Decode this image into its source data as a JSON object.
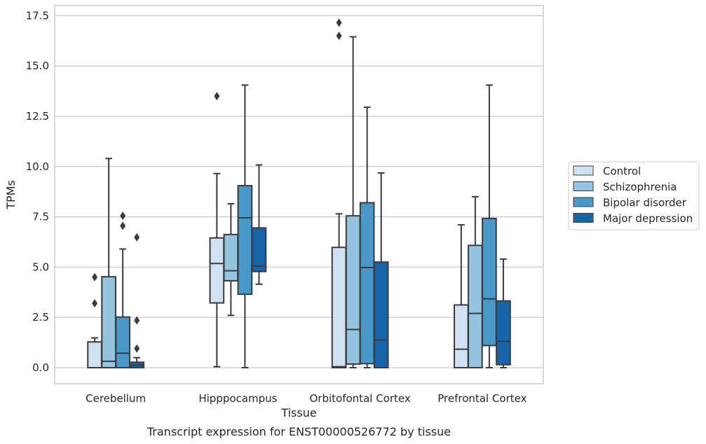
{
  "chart_data": {
    "type": "box",
    "title": "",
    "caption": "Transcript expression for ENST00000526772 by tissue",
    "xlabel": "Tissue",
    "ylabel": "TPMs",
    "ylim": [
      -0.8,
      18.0
    ],
    "yticks": [
      "0.0",
      "2.5",
      "5.0",
      "7.5",
      "10.0",
      "12.5",
      "15.0",
      "17.5"
    ],
    "ytick_values": [
      0,
      2.5,
      5,
      7.5,
      10,
      12.5,
      15,
      17.5
    ],
    "grid": "horizontal",
    "legend_position": "right",
    "categories": [
      "Cerebellum",
      "Hipppocampus",
      "Orbitofontal Cortex",
      "Prefrontal Cortex"
    ],
    "series": [
      {
        "name": "Control",
        "color": "#d0e1f2",
        "boxes": [
          {
            "whislo": 0,
            "q1": 0,
            "med": 0,
            "q3": 1.28,
            "whishi": 1.48,
            "fliers": [
              3.2,
              4.5
            ]
          },
          {
            "whislo": 0.05,
            "q1": 3.22,
            "med": 5.18,
            "q3": 6.45,
            "whishi": 9.65,
            "fliers": [
              13.5
            ]
          },
          {
            "whislo": 0,
            "q1": 0,
            "med": 0.05,
            "q3": 5.98,
            "whishi": 7.65,
            "fliers": [
              16.5,
              17.15
            ]
          },
          {
            "whislo": 0,
            "q1": 0,
            "med": 0.92,
            "q3": 3.12,
            "whishi": 7.1,
            "fliers": []
          }
        ]
      },
      {
        "name": "Schizophrenia",
        "color": "#94c4df",
        "boxes": [
          {
            "whislo": 0,
            "q1": 0,
            "med": 0.32,
            "q3": 4.52,
            "whishi": 10.4,
            "fliers": []
          },
          {
            "whislo": 2.6,
            "q1": 4.32,
            "med": 4.82,
            "q3": 6.62,
            "whishi": 8.15,
            "fliers": []
          },
          {
            "whislo": 0,
            "q1": 0.18,
            "med": 1.9,
            "q3": 7.55,
            "whishi": 16.45,
            "fliers": []
          },
          {
            "whislo": 0,
            "q1": 0,
            "med": 2.7,
            "q3": 6.08,
            "whishi": 8.5,
            "fliers": []
          }
        ]
      },
      {
        "name": "Bipolar disorder",
        "color": "#4a98c9",
        "boxes": [
          {
            "whislo": 0,
            "q1": 0,
            "med": 0.72,
            "q3": 2.52,
            "whishi": 5.9,
            "fliers": [
              7.05,
              7.55
            ]
          },
          {
            "whislo": 0,
            "q1": 3.65,
            "med": 7.45,
            "q3": 9.05,
            "whishi": 14.05,
            "fliers": []
          },
          {
            "whislo": 0,
            "q1": 0.2,
            "med": 4.98,
            "q3": 8.2,
            "whishi": 12.95,
            "fliers": []
          },
          {
            "whislo": 0,
            "q1": 1.1,
            "med": 3.42,
            "q3": 7.42,
            "whishi": 14.05,
            "fliers": []
          }
        ]
      },
      {
        "name": "Major depression",
        "color": "#1764ab",
        "boxes": [
          {
            "whislo": 0,
            "q1": 0,
            "med": 0.12,
            "q3": 0.27,
            "whishi": 0.5,
            "fliers": [
              0.95,
              2.35,
              6.48
            ]
          },
          {
            "whislo": 4.15,
            "q1": 4.78,
            "med": 5.05,
            "q3": 6.95,
            "whishi": 10.08,
            "fliers": []
          },
          {
            "whislo": 0,
            "q1": 0,
            "med": 1.38,
            "q3": 5.25,
            "whishi": 9.68,
            "fliers": []
          },
          {
            "whislo": 0,
            "q1": 0.15,
            "med": 1.3,
            "q3": 3.32,
            "whishi": 5.4,
            "fliers": []
          }
        ]
      }
    ]
  }
}
